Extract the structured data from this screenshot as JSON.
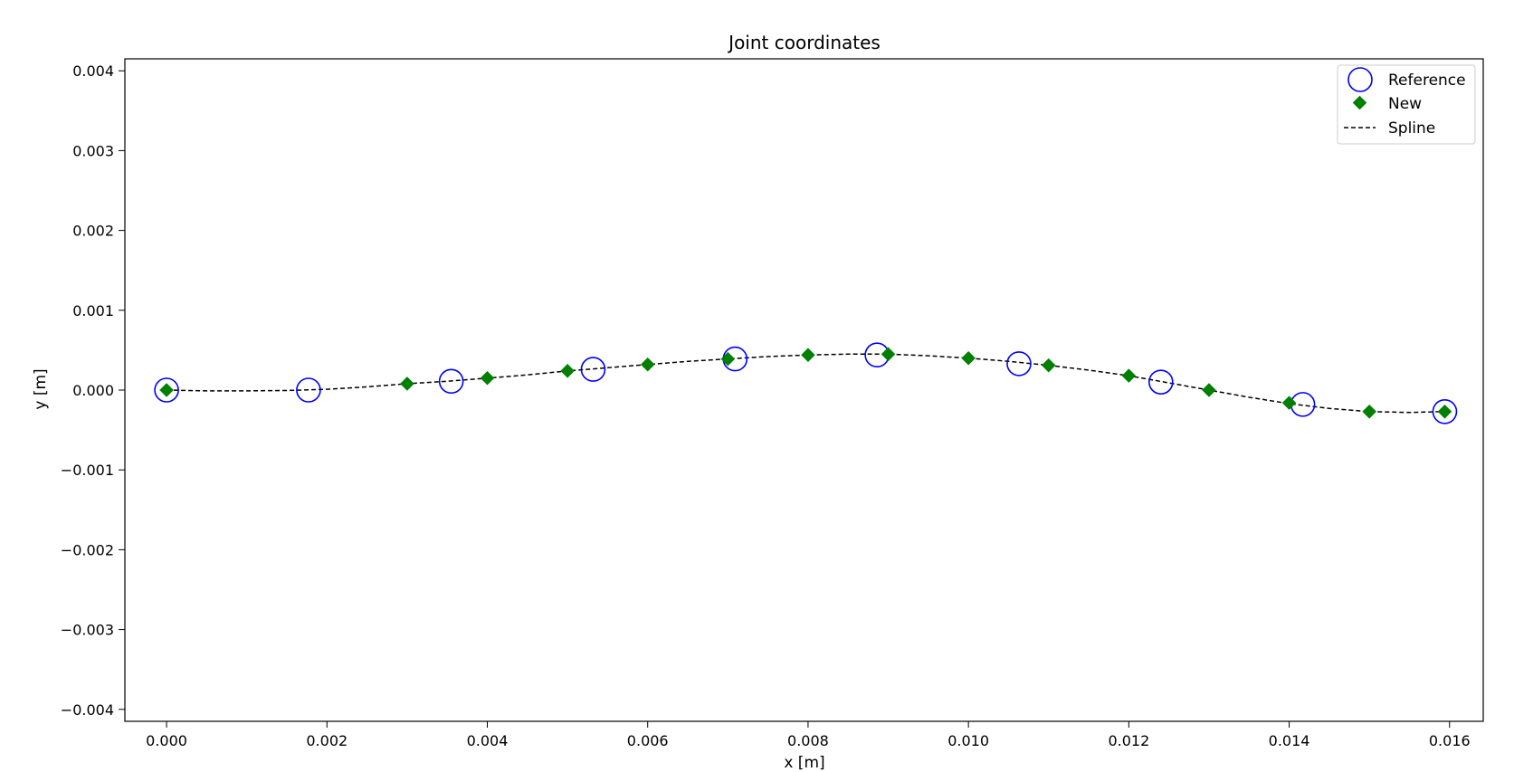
{
  "chart_data": {
    "type": "scatter",
    "title": "Joint coordinates",
    "xlabel": "x [m]",
    "ylabel": "y [m]",
    "xlim": [
      -0.00052,
      0.01642
    ],
    "ylim": [
      -0.00415,
      0.00415
    ],
    "xticks": [
      0.0,
      0.002,
      0.004,
      0.006,
      0.008,
      0.01,
      0.012,
      0.014,
      0.016
    ],
    "xtick_labels": [
      "0.000",
      "0.002",
      "0.004",
      "0.006",
      "0.008",
      "0.010",
      "0.012",
      "0.014",
      "0.016"
    ],
    "yticks": [
      -0.004,
      -0.003,
      -0.002,
      -0.001,
      0.0,
      0.001,
      0.002,
      0.003,
      0.004
    ],
    "ytick_labels": [
      "−0.004",
      "−0.003",
      "−0.002",
      "−0.001",
      "0.000",
      "0.001",
      "0.002",
      "0.003",
      "0.004"
    ],
    "grid": false,
    "legend_position": "top-right",
    "series": [
      {
        "name": "Reference",
        "marker": "open-circle",
        "color": "#0000ff",
        "x": [
          0.0,
          0.00177,
          0.00355,
          0.00532,
          0.00709,
          0.00886,
          0.01063,
          0.0124,
          0.01417,
          0.01594
        ],
        "y": [
          0.0,
          0.0,
          0.00011,
          0.00026,
          0.00039,
          0.00044,
          0.00033,
          0.0001,
          -0.00018,
          -0.00027
        ]
      },
      {
        "name": "New",
        "marker": "diamond",
        "color": "#008000",
        "x": [
          0.0,
          0.003,
          0.004,
          0.005,
          0.006,
          0.007,
          0.008,
          0.009,
          0.01,
          0.011,
          0.012,
          0.013,
          0.014,
          0.015,
          0.01594
        ],
        "y": [
          0.0,
          8e-05,
          0.00015,
          0.00024,
          0.00032,
          0.00039,
          0.00044,
          0.00045,
          0.0004,
          0.00031,
          0.00018,
          0.0,
          -0.00016,
          -0.00027,
          -0.00027
        ]
      },
      {
        "name": "Spline",
        "line": "dashed",
        "color": "#000000",
        "x": [
          0.0,
          0.0005,
          0.001,
          0.0015,
          0.002,
          0.0025,
          0.003,
          0.0035,
          0.004,
          0.0045,
          0.005,
          0.0055,
          0.006,
          0.0065,
          0.007,
          0.0075,
          0.008,
          0.0085,
          0.009,
          0.0095,
          0.01,
          0.0105,
          0.011,
          0.0115,
          0.012,
          0.0125,
          0.013,
          0.0135,
          0.014,
          0.0145,
          0.015,
          0.0155,
          0.01594
        ],
        "y": [
          0.0,
          -1e-05,
          -1e-05,
          -5e-06,
          1e-05,
          4e-05,
          8e-05,
          0.00011,
          0.00015,
          0.00019,
          0.00024,
          0.00028,
          0.00032,
          0.00036,
          0.00039,
          0.00042,
          0.00044,
          0.00045,
          0.00045,
          0.00043,
          0.0004,
          0.00036,
          0.00031,
          0.00025,
          0.00018,
          9e-05,
          0.0,
          -9e-05,
          -0.00017,
          -0.00023,
          -0.00027,
          -0.00028,
          -0.00027
        ]
      }
    ]
  }
}
